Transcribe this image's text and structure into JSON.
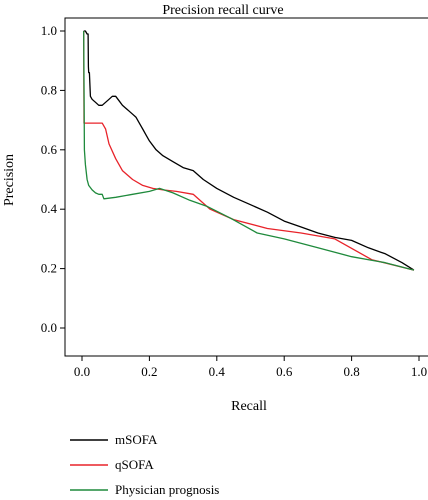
{
  "chart_data": {
    "type": "line",
    "title": "Precision recall curve",
    "xlabel": "Recall",
    "ylabel": "Precision",
    "xlim": [
      0,
      1
    ],
    "ylim": [
      0,
      1
    ],
    "x_ticks": [
      "0.0",
      "0.2",
      "0.4",
      "0.6",
      "0.8",
      "1.0"
    ],
    "y_ticks": [
      "0.0",
      "0.2",
      "0.4",
      "0.6",
      "0.8",
      "1.0"
    ],
    "grid": false,
    "legend_position": "bottom",
    "series": [
      {
        "name": "mSOFA",
        "color": "#000000",
        "x": [
          0.005,
          0.01,
          0.015,
          0.018,
          0.019,
          0.02,
          0.022,
          0.025,
          0.03,
          0.04,
          0.05,
          0.06,
          0.07,
          0.08,
          0.09,
          0.1,
          0.11,
          0.12,
          0.13,
          0.14,
          0.15,
          0.16,
          0.17,
          0.18,
          0.19,
          0.2,
          0.22,
          0.24,
          0.27,
          0.3,
          0.33,
          0.36,
          0.4,
          0.45,
          0.5,
          0.55,
          0.6,
          0.65,
          0.7,
          0.75,
          0.8,
          0.85,
          0.9,
          0.95,
          0.985
        ],
        "y": [
          1.0,
          1.0,
          0.99,
          0.99,
          0.88,
          0.86,
          0.86,
          0.78,
          0.77,
          0.76,
          0.75,
          0.75,
          0.76,
          0.77,
          0.78,
          0.78,
          0.765,
          0.75,
          0.74,
          0.73,
          0.72,
          0.71,
          0.69,
          0.67,
          0.65,
          0.63,
          0.6,
          0.58,
          0.56,
          0.54,
          0.53,
          0.5,
          0.47,
          0.44,
          0.415,
          0.39,
          0.36,
          0.34,
          0.32,
          0.305,
          0.295,
          0.27,
          0.25,
          0.22,
          0.195
        ]
      },
      {
        "name": "qSOFA",
        "color": "#e8232a",
        "x": [
          0.005,
          0.006,
          0.01,
          0.04,
          0.06,
          0.07,
          0.08,
          0.1,
          0.12,
          0.15,
          0.18,
          0.21,
          0.24,
          0.28,
          0.33,
          0.38,
          0.45,
          0.55,
          0.65,
          0.75,
          0.86,
          0.985
        ],
        "y": [
          1.0,
          0.69,
          0.69,
          0.69,
          0.69,
          0.67,
          0.62,
          0.57,
          0.53,
          0.5,
          0.48,
          0.47,
          0.465,
          0.46,
          0.45,
          0.4,
          0.365,
          0.335,
          0.32,
          0.3,
          0.23,
          0.195
        ]
      },
      {
        "name": "Physician prognosis",
        "color": "#1f8a3c",
        "x": [
          0.005,
          0.007,
          0.01,
          0.015,
          0.02,
          0.03,
          0.04,
          0.05,
          0.06,
          0.065,
          0.1,
          0.15,
          0.2,
          0.23,
          0.27,
          0.32,
          0.37,
          0.44,
          0.52,
          0.6,
          0.7,
          0.8,
          0.9,
          0.985
        ],
        "y": [
          1.0,
          0.6,
          0.55,
          0.5,
          0.48,
          0.465,
          0.455,
          0.45,
          0.45,
          0.435,
          0.44,
          0.45,
          0.46,
          0.47,
          0.455,
          0.43,
          0.41,
          0.37,
          0.32,
          0.3,
          0.27,
          0.24,
          0.22,
          0.195
        ]
      }
    ]
  }
}
